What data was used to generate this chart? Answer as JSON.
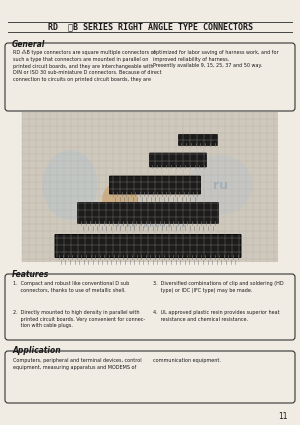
{
  "bg_color": "#f0ece4",
  "title": "RD  ⁂B SERIES RIGHT ANGLE TYPE CONNECTORS",
  "general_title": "General",
  "general_body_left": "RD ⁂B type connectors are square multiple connectors of\nsuch a type that connectors are mounted in parallel on\nprinted circuit boards, and they are interchangeable with\nDIN or ISO 30 sub-miniature D connectors. Because of direct\nconnection to circuits on printed circuit boards, they are",
  "general_body_right": "optimized for labor saving of harness work, and for\nimproved reliability of harness.\nPresently available 9, 15, 25, 37 and 50 way.",
  "features_title": "Features",
  "features_items_left": [
    "1.  Compact and robust like conventional D sub\n     connectors, thanks to use of metallic shell.",
    "2.  Directly mounted to high density in parallel with\n     printed circuit boards. Very convenient for connec-\n     tion with cable plugs."
  ],
  "features_items_right": [
    "3.  Diversified combinations of clip and soldering (HD\n     type) or IDC (IFC type) may be made.",
    "4.  UL approved plastic resin provides superior heat\n     resistance and chemical resistance."
  ],
  "application_title": "Application",
  "application_body_left": "Computers, peripheral and terminal devices, control\nequipment, measuring apparatus and MODEMS of",
  "application_body_right": "communication equipment.",
  "page_number": "11",
  "line_color": "#444444",
  "box_edge_color": "#333333",
  "text_color": "#1a1a1a",
  "grid_bg": "#cfc8bc",
  "grid_line": "#b0a898",
  "watermark_blue": "#a8c4d8",
  "watermark_orange": "#c89040",
  "connector_dark": "#1c1c1c",
  "connector_mid": "#383838",
  "connector_pin": "#808080"
}
